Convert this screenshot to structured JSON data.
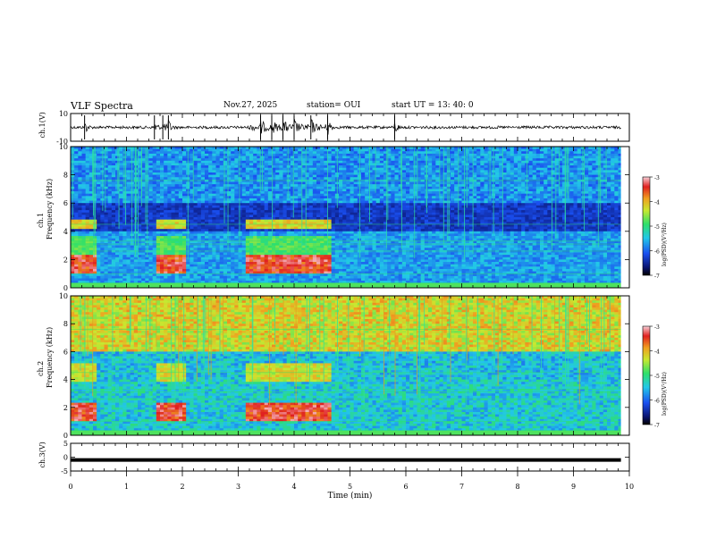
{
  "header": {
    "title": "VLF Spectra",
    "date": "Nov.27, 2025",
    "station": "station= OUI",
    "start": "start  UT =   13: 40: 0"
  },
  "colors": {
    "background": "#ffffff",
    "axis": "#000000",
    "trace": "#000000",
    "spectrogram_low": "#0a1470",
    "spectrogram_high": "#d01010"
  },
  "chart_data": [
    {
      "type": "line",
      "name": "ch1-waveform",
      "ylabel": "ch.1(V)",
      "ylim": [
        -10,
        10
      ],
      "yticks": [
        "10",
        "-10"
      ],
      "xlim": [
        0,
        10
      ],
      "bursts_at_min": [
        0.25,
        1.5,
        1.65,
        1.75,
        3.4,
        3.6,
        3.8,
        4.0,
        4.3,
        4.6,
        5.8
      ]
    },
    {
      "type": "heatmap",
      "name": "ch1-spectrogram",
      "ylabel": "ch.1 Frequency (kHz)",
      "ylim": [
        0,
        10
      ],
      "yticks": [
        "0",
        "2",
        "4",
        "6",
        "8",
        "10"
      ],
      "xlim": [
        0,
        10
      ],
      "colorbar": {
        "label": "log(PSD)(V²/Hz)",
        "range": [
          -7,
          -3
        ],
        "ticks": [
          "-3",
          "-4",
          "-5",
          "-6",
          "-7"
        ]
      },
      "bright_blocks_min": [
        [
          0,
          0.4
        ],
        [
          1.5,
          2.0
        ],
        [
          3.1,
          4.65
        ]
      ]
    },
    {
      "type": "heatmap",
      "name": "ch2-spectrogram",
      "ylabel": "ch.2 Frequency (kHz)",
      "ylim": [
        0,
        10
      ],
      "yticks": [
        "0",
        "2",
        "4",
        "6",
        "8",
        "10"
      ],
      "xlim": [
        0,
        10
      ],
      "colorbar": {
        "label": "log(PSD)(V²/Hz)",
        "range": [
          -7,
          -3
        ],
        "ticks": [
          "-3",
          "-4",
          "-5",
          "-6",
          "-7"
        ]
      },
      "bright_blocks_min": [
        [
          0,
          0.4
        ],
        [
          1.5,
          2.0
        ],
        [
          3.1,
          4.65
        ]
      ]
    },
    {
      "type": "line",
      "name": "ch3-waveform",
      "ylabel": "ch.3(V)",
      "ylim": [
        -5,
        5
      ],
      "yticks": [
        "5",
        "0",
        "-5"
      ],
      "xlim": [
        0,
        10
      ],
      "xticks": [
        "0",
        "1",
        "2",
        "3",
        "4",
        "5",
        "6",
        "7",
        "8",
        "9",
        "10"
      ],
      "xlabel": "Time  (min)",
      "level_v": -1
    }
  ]
}
